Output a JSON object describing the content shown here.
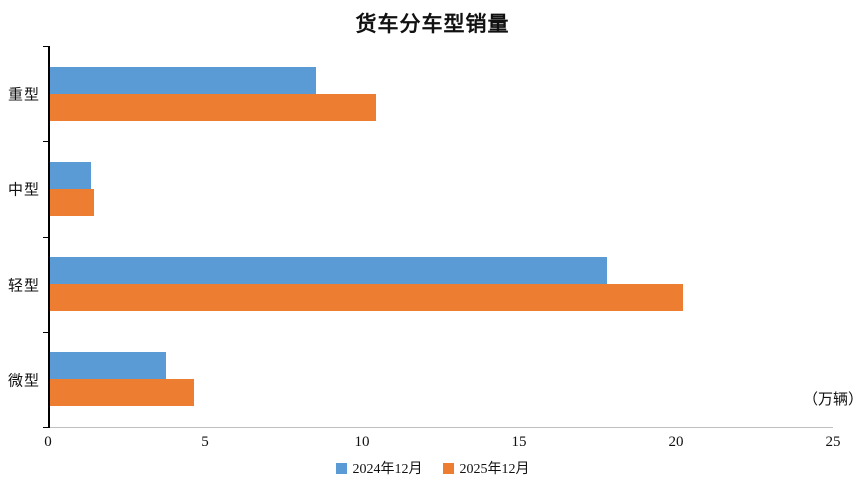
{
  "unit_label": "（万辆）",
  "chart_data": {
    "type": "bar",
    "orientation": "horizontal",
    "title": "货车分车型销量",
    "categories": [
      "重型",
      "中型",
      "轻型",
      "微型"
    ],
    "series": [
      {
        "name": "2024年12月",
        "color": "#5B9BD5",
        "values": [
          8.5,
          1.3,
          17.8,
          3.7
        ]
      },
      {
        "name": "2025年12月",
        "color": "#ED7D31",
        "values": [
          10.4,
          1.4,
          20.2,
          4.6
        ]
      }
    ],
    "xlim": [
      0,
      25
    ],
    "xticks": [
      0,
      5,
      10,
      15,
      20,
      25
    ],
    "xlabel": "",
    "ylabel": "",
    "grid": false,
    "legend_position": "bottom"
  }
}
